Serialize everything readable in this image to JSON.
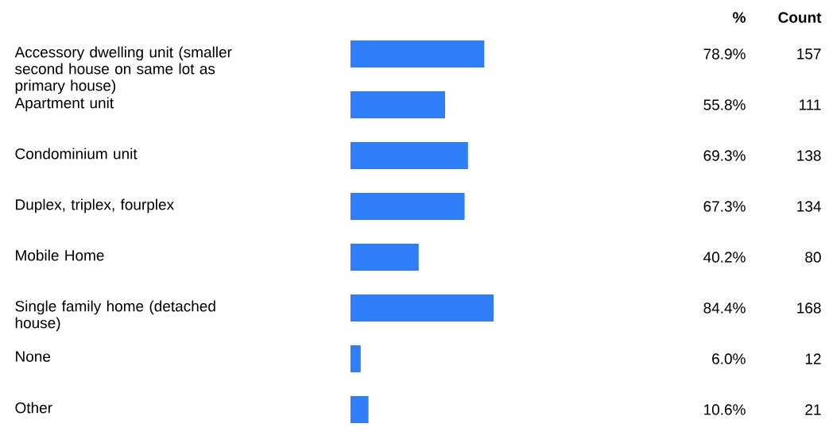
{
  "chart_data": {
    "type": "bar",
    "orientation": "horizontal",
    "color": "#2f7ef7",
    "categories": [
      "Accessory dwelling unit (smaller second house on same lot as primary house)",
      "Apartment unit",
      "Condominium unit",
      "Duplex, triplex, fourplex",
      "Mobile Home",
      "Single family home (detached house)",
      "None",
      "Other"
    ],
    "values": [
      78.9,
      55.8,
      69.3,
      67.3,
      40.2,
      84.4,
      6.0,
      10.6
    ],
    "value_labels": [
      "78.9%",
      "55.8%",
      "69.3%",
      "67.3%",
      "40.2%",
      "84.4%",
      "6.0%",
      "10.6%"
    ],
    "annotations": [
      "%",
      "Count",
      "157",
      "111",
      "138",
      "134",
      "80",
      "168",
      "12",
      "21"
    ]
  }
}
